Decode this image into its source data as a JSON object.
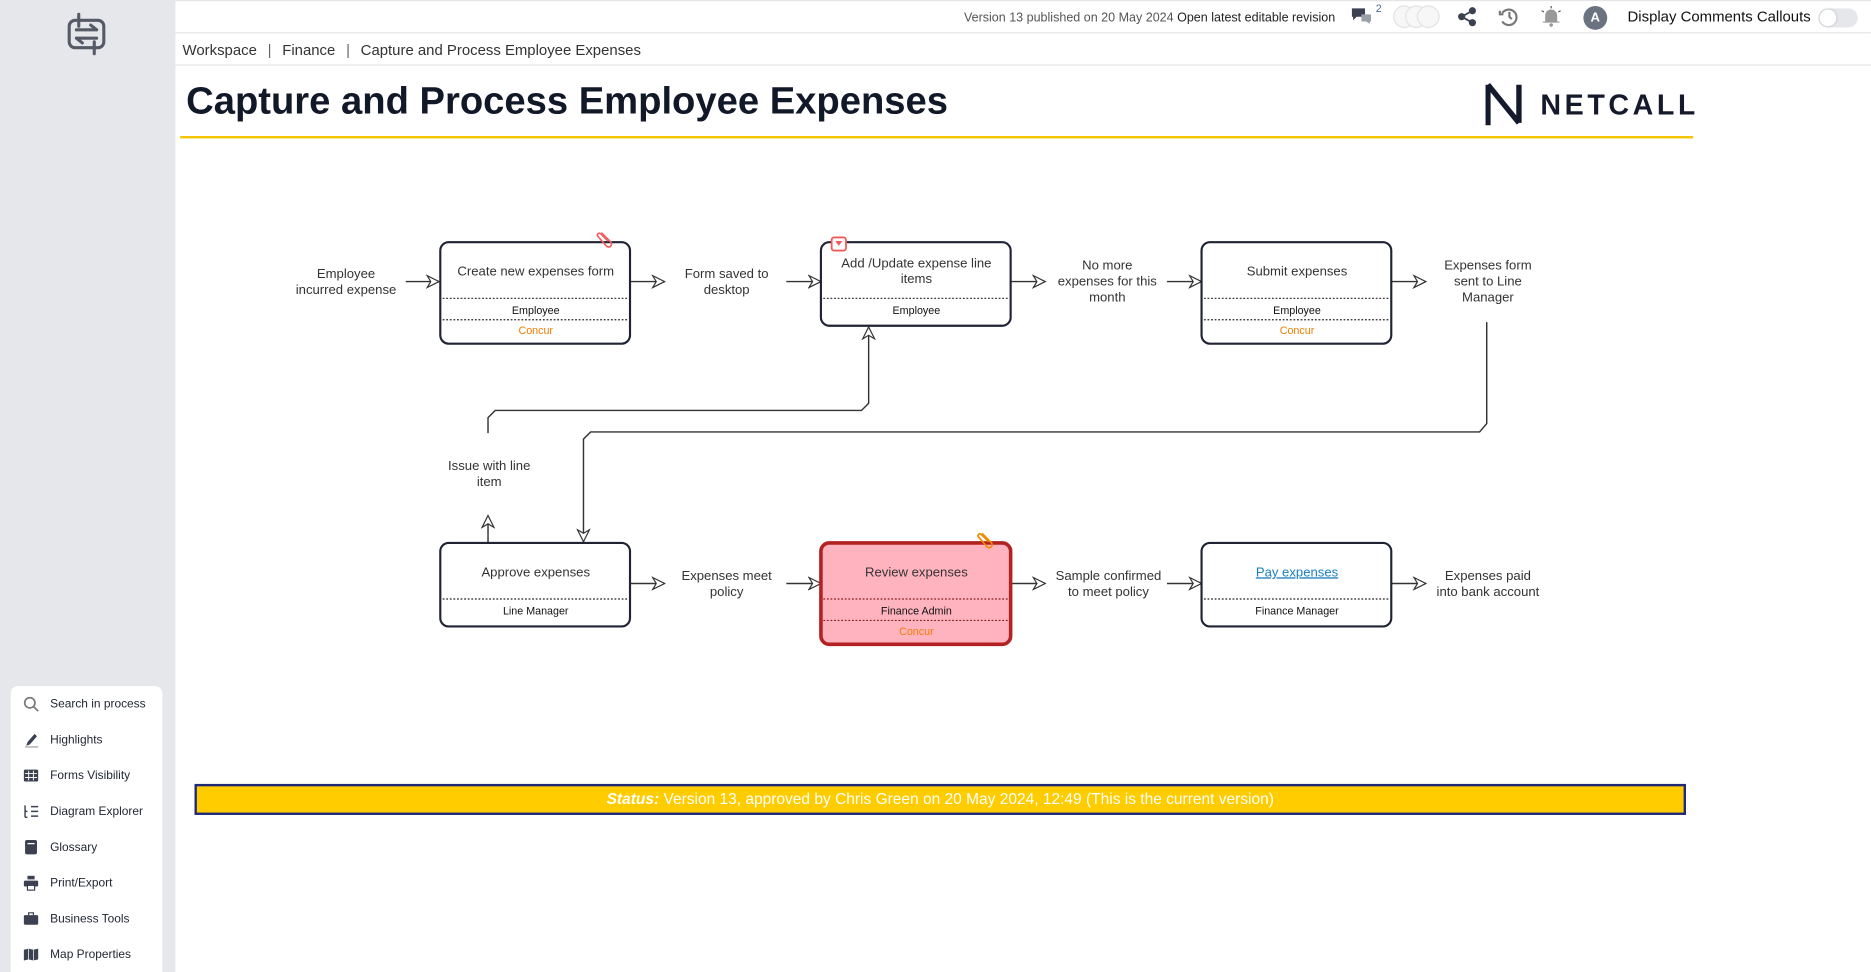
{
  "topbar": {
    "version_text": "Version 13 published on 20 May 2024",
    "open_revision_link": "Open latest editable revision",
    "comments_count": "2",
    "avatar_initial": "A",
    "display_comments_label": "Display Comments Callouts",
    "display_comments_on": false
  },
  "breadcrumb": [
    "Workspace",
    "Finance",
    "Capture and Process Employee Expenses"
  ],
  "page_title": "Capture and Process Employee Expenses",
  "brand_logo": "NETCALL",
  "sidebar": {
    "items": [
      {
        "label": "Search in process",
        "icon": "search-icon"
      },
      {
        "label": "Highlights",
        "icon": "highlighter-icon"
      },
      {
        "label": "Forms Visibility",
        "icon": "table-icon"
      },
      {
        "label": "Diagram Explorer",
        "icon": "tree-list-icon"
      },
      {
        "label": "Glossary",
        "icon": "book-icon"
      },
      {
        "label": "Print/Export",
        "icon": "printer-icon"
      },
      {
        "label": "Business Tools",
        "icon": "briefcase-icon"
      },
      {
        "label": "Map Properties",
        "icon": "map-icon"
      }
    ]
  },
  "diagram": {
    "activities": [
      {
        "title": [
          "Create new expenses form"
        ],
        "role": "Employee",
        "system": "Concur",
        "attachment": true
      },
      {
        "title": [
          "Add /Update expense line",
          "items"
        ],
        "role": "Employee",
        "dropdown_marker": true
      },
      {
        "title": [
          "Submit expenses"
        ],
        "role": "Employee",
        "system": "Concur"
      },
      {
        "title": [
          "Approve expenses"
        ],
        "role": "Line Manager"
      },
      {
        "title": [
          "Review expenses"
        ],
        "role": "Finance Admin",
        "system": "Concur",
        "highlighted": true,
        "attachment": true
      },
      {
        "title": [
          "Pay expenses"
        ],
        "role": "Finance Manager",
        "link": true
      }
    ],
    "labels": {
      "start": [
        "Employee",
        "incurred expense"
      ],
      "form_saved": [
        "Form saved to",
        "desktop"
      ],
      "no_more": [
        "No more",
        "expenses for this",
        "month"
      ],
      "form_sent": [
        "Expenses form",
        "sent to Line",
        "Manager"
      ],
      "issue": [
        "Issue with line",
        "item"
      ],
      "meet_policy": [
        "Expenses meet",
        "policy"
      ],
      "sample": [
        "Sample confirmed",
        "to meet policy"
      ],
      "paid": [
        "Expenses paid",
        "into bank account"
      ]
    },
    "colors": {
      "highlight_fill": "#ffb3bf",
      "highlight_stroke": "#b22222",
      "system_text": "#f07d00",
      "link": "#1a7fc1"
    }
  },
  "status": {
    "label": "Status:",
    "text": " Version 13, approved by Chris Green on 20 May 2024, 12:49 (This is the current version)",
    "bg": "#ffcc00",
    "border": "#1e2a78"
  }
}
